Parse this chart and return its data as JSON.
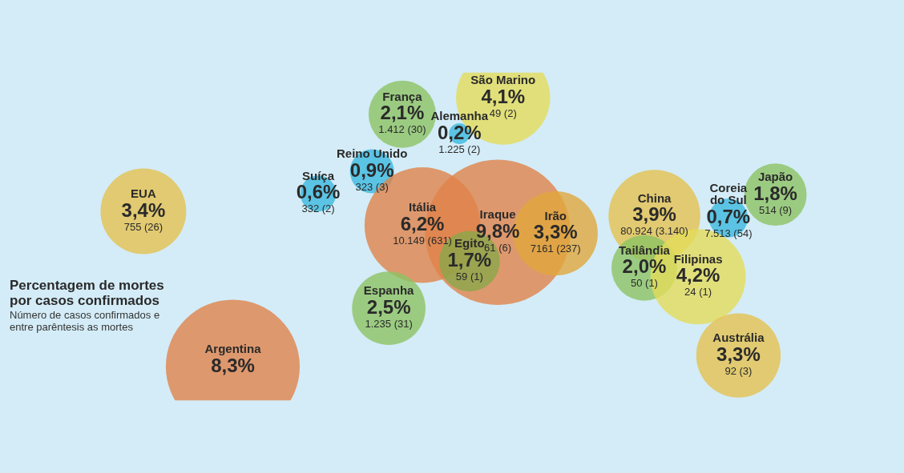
{
  "chart_data": {
    "type": "other",
    "title": "Percentagem de mortes por casos confirmados",
    "subtitle": "Número de casos confirmados e entre parêntesis as mortes",
    "categories": [
      "EUA",
      "França",
      "Alemanha",
      "Reino Unido",
      "Suíça",
      "Itália",
      "São Marino",
      "Iraque",
      "Irão",
      "Egito",
      "Espanha",
      "China",
      "Coreia do Sul",
      "Japão",
      "Tailândia",
      "Filipinas",
      "Austrália",
      "Argentina"
    ],
    "values": [
      3.4,
      2.1,
      0.2,
      0.9,
      0.6,
      6.2,
      4.1,
      9.8,
      3.3,
      1.7,
      2.5,
      3.9,
      0.7,
      1.8,
      2.0,
      4.2,
      3.3,
      8.3
    ],
    "value_labels": [
      "3,4%",
      "2,1%",
      "0,2%",
      "0,9%",
      "0,6%",
      "6,2%",
      "4,1%",
      "9,8%",
      "3,3%",
      "1,7%",
      "2,5%",
      "3,9%",
      "0,7%",
      "1,8%",
      "2,0%",
      "4,2%",
      "3,3%",
      "8,3%"
    ],
    "colors": [
      "#e3c24f",
      "#8cc363",
      "#3cb9df",
      "#3cb9df",
      "#3cb9df",
      "#e0834a",
      "#e3dc5a",
      "#e0834a",
      "#e0a83c",
      "#8aa84a",
      "#8cc363",
      "#e3c24f",
      "#3cb9df",
      "#8cc363",
      "#8cc363",
      "#e3dc5a",
      "#e3c24f",
      "#e0834a"
    ],
    "annotations": [
      {
        "text": "755 (26)",
        "x": "EUA"
      },
      {
        "text": "1.412 (30)",
        "x": "França"
      },
      {
        "text": "1.225 (2)",
        "x": "Alemanha"
      },
      {
        "text": "323 (3)",
        "x": "Reino Unido"
      },
      {
        "text": "332 (2)",
        "x": "Suíça"
      },
      {
        "text": "10.149 (631)",
        "x": "Itália"
      },
      {
        "text": "49 (2)",
        "x": "São Marino"
      },
      {
        "text": "61 (6)",
        "x": "Iraque"
      },
      {
        "text": "7161 (237)",
        "x": "Irão"
      },
      {
        "text": "59 (1)",
        "x": "Egito"
      },
      {
        "text": "1.235 (31)",
        "x": "Espanha"
      },
      {
        "text": "80.924 (3.140)",
        "x": "China"
      },
      {
        "text": "7.513 (54)",
        "x": "Coreia do Sul"
      },
      {
        "text": "514 (9)",
        "x": "Japão"
      },
      {
        "text": "50 (1)",
        "x": "Tailândia"
      },
      {
        "text": "24 (1)",
        "x": "Filipinas"
      },
      {
        "text": "92 (3)",
        "x": "Austrália"
      }
    ]
  }
}
